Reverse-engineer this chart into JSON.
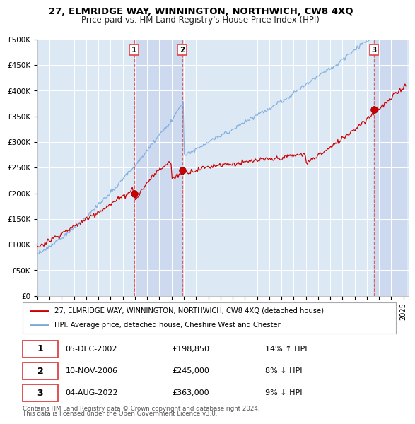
{
  "title": "27, ELMRIDGE WAY, WINNINGTON, NORTHWICH, CW8 4XQ",
  "subtitle": "Price paid vs. HM Land Registry's House Price Index (HPI)",
  "ylabel_ticks": [
    "£0",
    "£50K",
    "£100K",
    "£150K",
    "£200K",
    "£250K",
    "£300K",
    "£350K",
    "£400K",
    "£450K",
    "£500K"
  ],
  "ytick_values": [
    0,
    50000,
    100000,
    150000,
    200000,
    250000,
    300000,
    350000,
    400000,
    450000,
    500000
  ],
  "ylim": [
    0,
    500000
  ],
  "plot_bg_color": "#dde8f5",
  "grid_color": "#ffffff",
  "shade_color": "#ccd9ee",
  "sale_dates_str": [
    "2002-12-05",
    "2006-11-10",
    "2022-08-04"
  ],
  "sale_prices": [
    198850,
    245000,
    363000
  ],
  "sale_labels": [
    "1",
    "2",
    "3"
  ],
  "sale_pct": [
    "14% ↑ HPI",
    "8% ↓ HPI",
    "9% ↓ HPI"
  ],
  "sale_info": [
    "05-DEC-2002",
    "10-NOV-2006",
    "04-AUG-2022"
  ],
  "sale_price_str": [
    "£198,850",
    "£245,000",
    "£363,000"
  ],
  "red_line_color": "#cc0000",
  "blue_line_color": "#7aaadd",
  "vline_color": "#dd4444",
  "legend_label_red": "27, ELMRIDGE WAY, WINNINGTON, NORTHWICH, CW8 4XQ (detached house)",
  "legend_label_blue": "HPI: Average price, detached house, Cheshire West and Chester",
  "footer1": "Contains HM Land Registry data © Crown copyright and database right 2024.",
  "footer2": "This data is licensed under the Open Government Licence v3.0."
}
